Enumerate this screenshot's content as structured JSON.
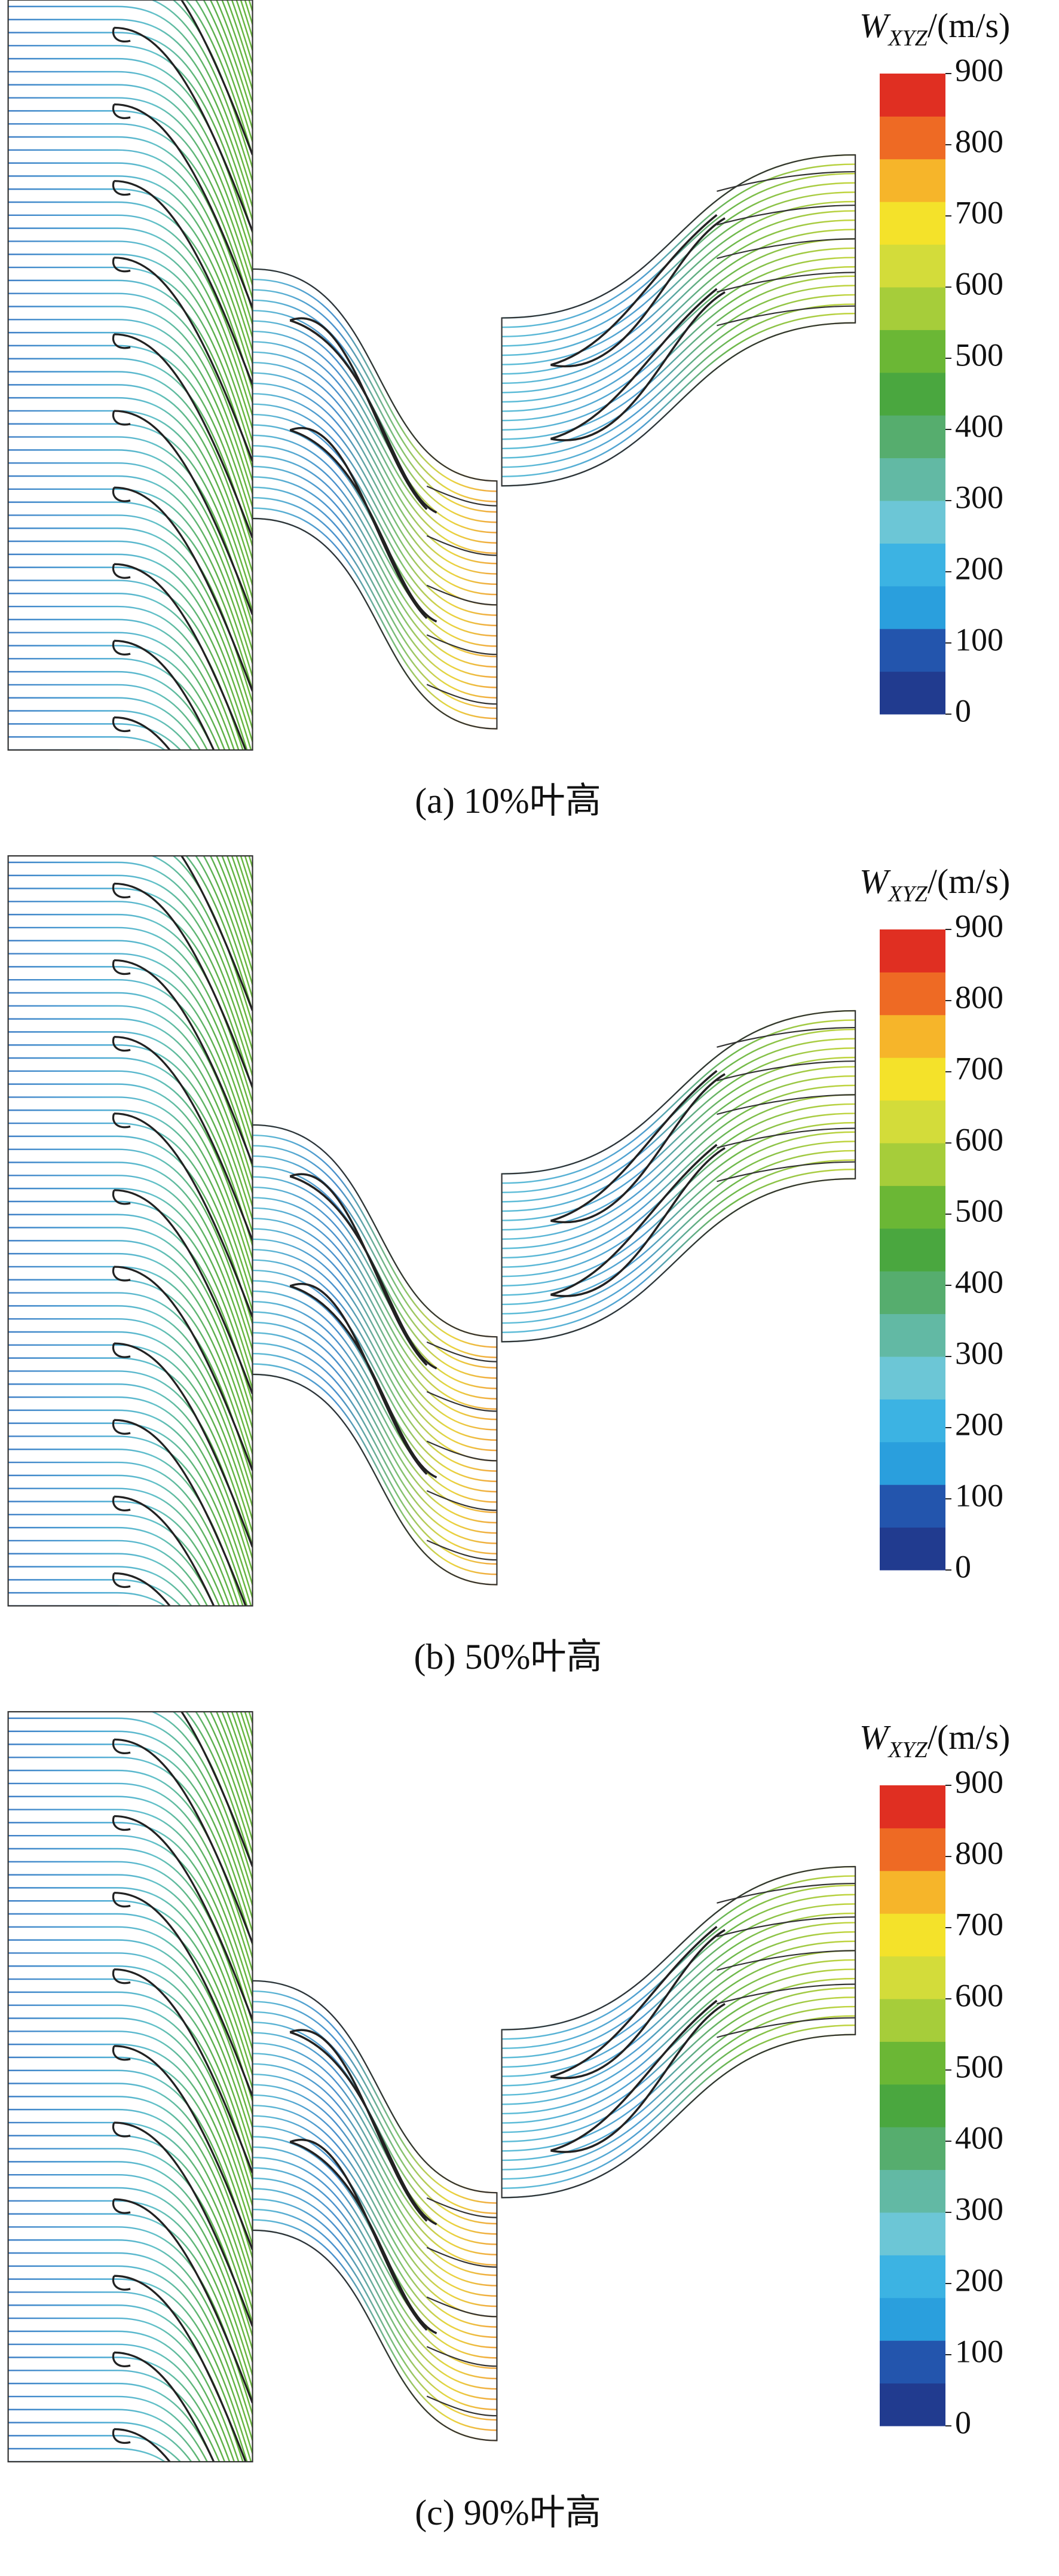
{
  "panels": [
    {
      "caption": "(a) 10%叶高",
      "colorbar": {
        "title": {
          "symbol": "W",
          "subscript": "XYZ",
          "unit": "/(m/s)"
        },
        "lim": [
          0,
          900
        ],
        "ticks": [
          0,
          100,
          200,
          300,
          400,
          500,
          600,
          700,
          800,
          900
        ],
        "colors": [
          "#213b8f",
          "#2355ad",
          "#2a9fdd",
          "#3cb3e3",
          "#6cc6d6",
          "#62b9a4",
          "#56ad6e",
          "#4aa73f",
          "#6bb735",
          "#a6cd3a",
          "#d3dc3a",
          "#f4e22a",
          "#f6b52a",
          "#ee6a24",
          "#e02f22"
        ]
      }
    },
    {
      "caption": "(b) 50%叶高",
      "colorbar": {
        "title": {
          "symbol": "W",
          "subscript": "XYZ",
          "unit": "/(m/s)"
        },
        "lim": [
          0,
          900
        ],
        "ticks": [
          0,
          100,
          200,
          300,
          400,
          500,
          600,
          700,
          800,
          900
        ],
        "colors": [
          "#213b8f",
          "#2355ad",
          "#2a9fdd",
          "#3cb3e3",
          "#6cc6d6",
          "#62b9a4",
          "#56ad6e",
          "#4aa73f",
          "#6bb735",
          "#a6cd3a",
          "#d3dc3a",
          "#f4e22a",
          "#f6b52a",
          "#ee6a24",
          "#e02f22"
        ]
      }
    },
    {
      "caption": "(c) 90%叶高",
      "colorbar": {
        "title": {
          "symbol": "W",
          "subscript": "XYZ",
          "unit": "/(m/s)"
        },
        "lim": [
          0,
          900
        ],
        "ticks": [
          0,
          100,
          200,
          300,
          400,
          500,
          600,
          700,
          800,
          900
        ],
        "colors": [
          "#213b8f",
          "#2355ad",
          "#2a9fdd",
          "#3cb3e3",
          "#6cc6d6",
          "#62b9a4",
          "#56ad6e",
          "#4aa73f",
          "#6bb735",
          "#a6cd3a",
          "#d3dc3a",
          "#f4e22a",
          "#f6b52a",
          "#ee6a24",
          "#e02f22"
        ]
      }
    }
  ]
}
